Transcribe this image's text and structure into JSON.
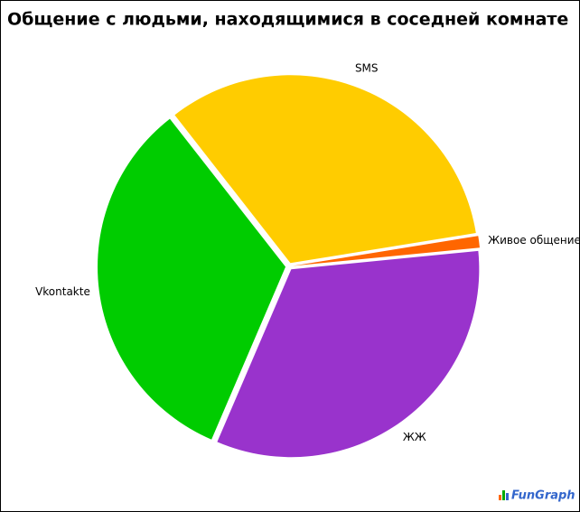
{
  "chart_data": {
    "type": "pie",
    "title": "Общение с людьми, находящимися в соседней комнате",
    "categories": [
      "SMS",
      "Живое общение",
      "ЖЖ",
      "Vkontakte"
    ],
    "values": [
      33,
      1,
      33,
      33
    ],
    "colors": [
      "#ffcc00",
      "#ff6600",
      "#9933cc",
      "#00cc00"
    ],
    "watermark": "FunGraph"
  }
}
